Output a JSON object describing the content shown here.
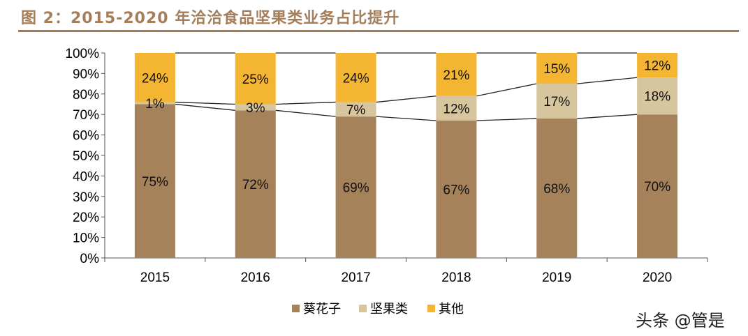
{
  "title": "图 2：2015-2020 年洽洽食品坚果类业务占比提升",
  "watermark": "头条 @管是",
  "chart_data": {
    "type": "bar",
    "stacked": true,
    "percent": true,
    "categories": [
      "2015",
      "2016",
      "2017",
      "2018",
      "2019",
      "2020"
    ],
    "series": [
      {
        "name": "葵花子",
        "color": "#A5825A",
        "values": [
          75,
          72,
          69,
          67,
          68,
          70
        ]
      },
      {
        "name": "坚果类",
        "color": "#D7C59E",
        "values": [
          1,
          3,
          7,
          12,
          17,
          18
        ]
      },
      {
        "name": "其他",
        "color": "#F4B632",
        "values": [
          24,
          25,
          24,
          21,
          15,
          12
        ]
      }
    ],
    "ylim": [
      0,
      100
    ],
    "yticks": [
      "0%",
      "10%",
      "20%",
      "30%",
      "40%",
      "50%",
      "60%",
      "70%",
      "80%",
      "90%",
      "100%"
    ],
    "series_lines": true,
    "legend": "bottom",
    "grid": false
  }
}
